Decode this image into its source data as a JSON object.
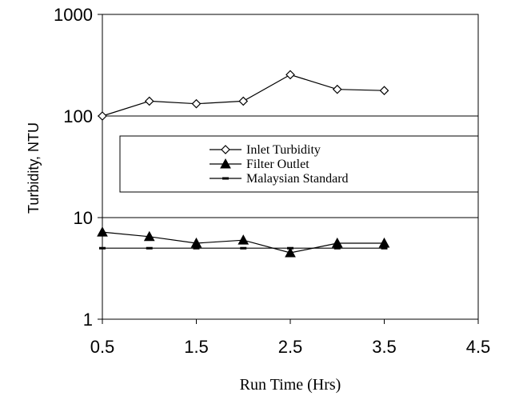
{
  "chart_data": {
    "type": "line",
    "title": "",
    "xlabel": "Run Time (Hrs)",
    "ylabel": "Turbidity, NTU",
    "xlim": [
      0.5,
      4.5
    ],
    "ylim": [
      1,
      1000
    ],
    "yscale": "log",
    "x_ticks": [
      "0.5",
      "1.5",
      "2.5",
      "3.5",
      "4.5"
    ],
    "y_ticks": [
      "1",
      "10",
      "100",
      "1000"
    ],
    "grid": "horizontal major gridlines",
    "legend_position": "center",
    "x": [
      0.5,
      1.0,
      1.5,
      2.0,
      2.5,
      3.0,
      3.5
    ],
    "series": [
      {
        "name": "Inlet Turbidity",
        "marker": "diamond-open",
        "values": [
          100,
          140,
          132,
          140,
          255,
          183,
          178
        ]
      },
      {
        "name": "Filter Outlet",
        "marker": "triangle-filled",
        "values": [
          7.2,
          6.5,
          5.6,
          6.0,
          4.5,
          5.6,
          5.6
        ]
      },
      {
        "name": "Malaysian Standard",
        "marker": "dash",
        "values": [
          5,
          5,
          5,
          5,
          5,
          5,
          5
        ]
      }
    ]
  }
}
